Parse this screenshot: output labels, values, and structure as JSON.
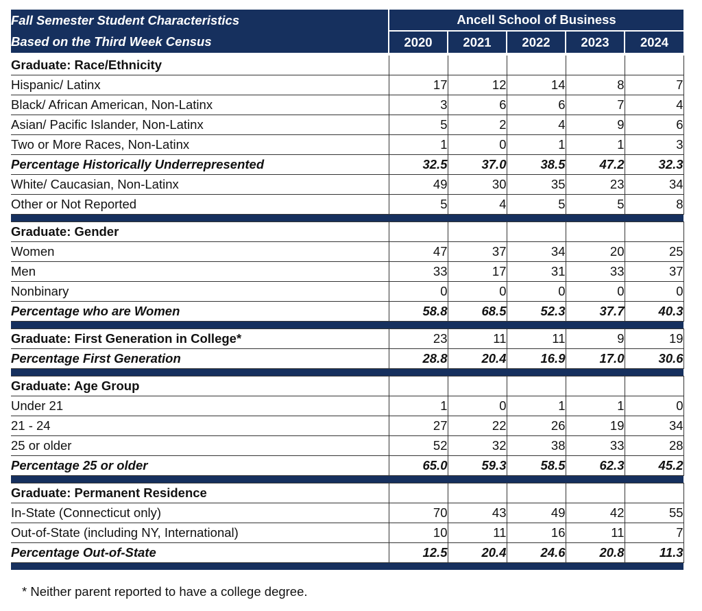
{
  "title_line1": "Fall Semester Student Characteristics",
  "title_line2": "Based on the Third Week Census",
  "school": "Ancell School of Business",
  "years": [
    "2020",
    "2021",
    "2022",
    "2023",
    "2024"
  ],
  "footnote": "* Neither parent reported to have a college degree.",
  "colors": {
    "header_bg": "#16305e",
    "header_text": "#ffffff"
  },
  "sections": [
    {
      "heading": "Graduate: Race/Ethnicity",
      "heading_values": null,
      "rows": [
        {
          "label": "Hispanic/ Latinx",
          "values": [
            "17",
            "12",
            "14",
            "8",
            "7"
          ],
          "type": "item"
        },
        {
          "label": "Black/ African American, Non-Latinx",
          "values": [
            "3",
            "6",
            "6",
            "7",
            "4"
          ],
          "type": "item"
        },
        {
          "label": "Asian/ Pacific Islander, Non-Latinx",
          "values": [
            "5",
            "2",
            "4",
            "9",
            "6"
          ],
          "type": "item"
        },
        {
          "label": "Two or More Races, Non-Latinx",
          "values": [
            "1",
            "0",
            "1",
            "1",
            "3"
          ],
          "type": "item"
        },
        {
          "label": "Percentage Historically Underrepresented",
          "values": [
            "32.5",
            "37.0",
            "38.5",
            "47.2",
            "32.3"
          ],
          "type": "pct-flush"
        },
        {
          "label": "White/ Caucasian, Non-Latinx",
          "values": [
            "49",
            "30",
            "35",
            "23",
            "34"
          ],
          "type": "item"
        },
        {
          "label": "Other or Not Reported",
          "values": [
            "5",
            "4",
            "5",
            "5",
            "8"
          ],
          "type": "item"
        }
      ]
    },
    {
      "heading": "Graduate: Gender",
      "heading_values": null,
      "rows": [
        {
          "label": "Women",
          "values": [
            "47",
            "37",
            "34",
            "20",
            "25"
          ],
          "type": "item"
        },
        {
          "label": "Men",
          "values": [
            "33",
            "17",
            "31",
            "33",
            "37"
          ],
          "type": "item"
        },
        {
          "label": "Nonbinary",
          "values": [
            "0",
            "0",
            "0",
            "0",
            "0"
          ],
          "type": "item"
        },
        {
          "label": "Percentage who are Women",
          "values": [
            "58.8",
            "68.5",
            "52.3",
            "37.7",
            "40.3"
          ],
          "type": "pct"
        }
      ]
    },
    {
      "heading": "Graduate: First Generation in College*",
      "heading_values": [
        "23",
        "11",
        "11",
        "9",
        "19"
      ],
      "rows": [
        {
          "label": "Percentage First Generation",
          "values": [
            "28.8",
            "20.4",
            "16.9",
            "17.0",
            "30.6"
          ],
          "type": "pct"
        }
      ]
    },
    {
      "heading": "Graduate: Age Group",
      "heading_values": null,
      "rows": [
        {
          "label": "Under 21",
          "values": [
            "1",
            "0",
            "1",
            "1",
            "0"
          ],
          "type": "item"
        },
        {
          "label": "21 - 24",
          "values": [
            "27",
            "22",
            "26",
            "19",
            "34"
          ],
          "type": "item"
        },
        {
          "label": "25 or older",
          "values": [
            "52",
            "32",
            "38",
            "33",
            "28"
          ],
          "type": "item"
        },
        {
          "label": "Percentage 25 or older",
          "values": [
            "65.0",
            "59.3",
            "58.5",
            "62.3",
            "45.2"
          ],
          "type": "pct"
        }
      ]
    },
    {
      "heading": "Graduate: Permanent Residence",
      "heading_values": null,
      "rows": [
        {
          "label": "In-State (Connecticut only)",
          "values": [
            "70",
            "43",
            "49",
            "42",
            "55"
          ],
          "type": "item2"
        },
        {
          "label": "Out-of-State (including NY, International)",
          "values": [
            "10",
            "11",
            "16",
            "11",
            "7"
          ],
          "type": "item2"
        },
        {
          "label": "Percentage Out-of-State",
          "values": [
            "12.5",
            "20.4",
            "24.6",
            "20.8",
            "11.3"
          ],
          "type": "pct"
        }
      ]
    }
  ]
}
